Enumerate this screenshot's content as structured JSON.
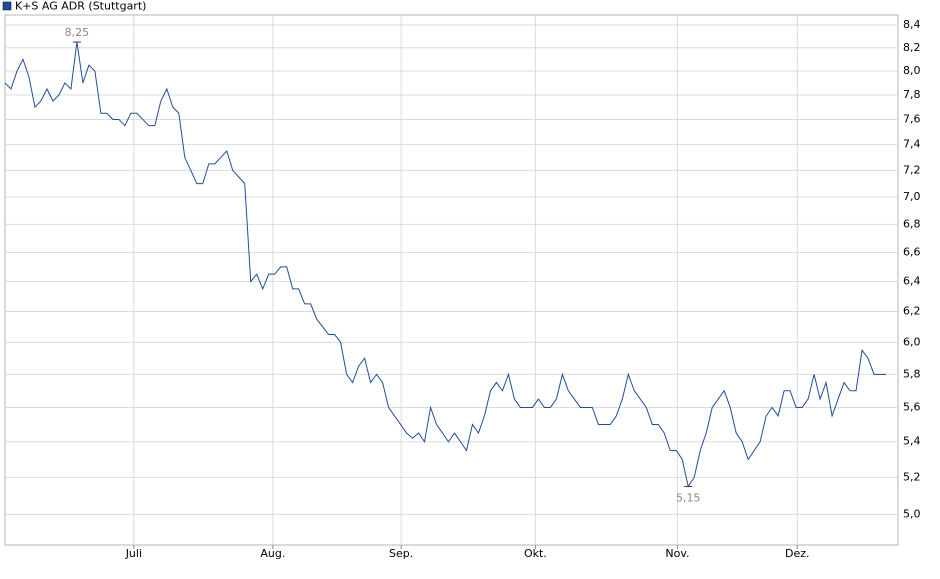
{
  "chart_data": {
    "type": "line",
    "log_scale": true,
    "grid": true,
    "series": [
      {
        "name": "K+S AG ADR (Stuttgart)",
        "color": "#1f4e9c",
        "values": [
          7.9,
          7.85,
          8.0,
          8.1,
          7.95,
          7.7,
          7.75,
          7.85,
          7.75,
          7.8,
          7.9,
          7.85,
          8.25,
          7.9,
          8.05,
          8.0,
          7.65,
          7.65,
          7.6,
          7.6,
          7.55,
          7.65,
          7.65,
          7.6,
          7.55,
          7.55,
          7.75,
          7.85,
          7.7,
          7.65,
          7.3,
          7.2,
          7.1,
          7.1,
          7.25,
          7.25,
          7.3,
          7.35,
          7.2,
          7.15,
          7.1,
          6.4,
          6.45,
          6.35,
          6.45,
          6.45,
          6.5,
          6.5,
          6.35,
          6.35,
          6.25,
          6.25,
          6.15,
          6.1,
          6.05,
          6.05,
          6.0,
          5.8,
          5.75,
          5.85,
          5.9,
          5.75,
          5.8,
          5.75,
          5.6,
          5.55,
          5.5,
          5.45,
          5.42,
          5.45,
          5.4,
          5.6,
          5.5,
          5.45,
          5.4,
          5.45,
          5.4,
          5.35,
          5.5,
          5.45,
          5.55,
          5.7,
          5.75,
          5.7,
          5.8,
          5.65,
          5.6,
          5.6,
          5.6,
          5.65,
          5.6,
          5.6,
          5.65,
          5.8,
          5.7,
          5.65,
          5.6,
          5.6,
          5.6,
          5.5,
          5.5,
          5.5,
          5.55,
          5.65,
          5.8,
          5.7,
          5.65,
          5.6,
          5.5,
          5.5,
          5.45,
          5.35,
          5.35,
          5.3,
          5.15,
          5.2,
          5.35,
          5.45,
          5.6,
          5.65,
          5.7,
          5.6,
          5.45,
          5.4,
          5.3,
          5.35,
          5.4,
          5.55,
          5.6,
          5.55,
          5.7,
          5.7,
          5.6,
          5.6,
          5.65,
          5.8,
          5.65,
          5.75,
          5.55,
          5.65,
          5.75,
          5.7,
          5.7,
          5.95,
          5.9,
          5.8,
          5.8,
          5.8
        ]
      }
    ],
    "annotations": [
      {
        "value": 8.25,
        "label": "8,25"
      },
      {
        "value": 5.15,
        "label": "5,15"
      }
    ],
    "xlim": [
      0,
      149
    ],
    "xticks": [
      {
        "value": 21.5,
        "label": "Juli"
      },
      {
        "value": 44.7,
        "label": "Aug."
      },
      {
        "value": 66.1,
        "label": "Sep."
      },
      {
        "value": 88.5,
        "label": "Okt."
      },
      {
        "value": 112.2,
        "label": "Nov."
      },
      {
        "value": 132.2,
        "label": "Dez."
      }
    ],
    "ylim": [
      4.84,
      8.49
    ],
    "yticks": [
      {
        "value": 5.0,
        "label": "5,0"
      },
      {
        "value": 5.2,
        "label": "5,2"
      },
      {
        "value": 5.4,
        "label": "5,4"
      },
      {
        "value": 5.6,
        "label": "5,6"
      },
      {
        "value": 5.8,
        "label": "5,8"
      },
      {
        "value": 6.0,
        "label": "6,0"
      },
      {
        "value": 6.2,
        "label": "6,2"
      },
      {
        "value": 6.4,
        "label": "6,4"
      },
      {
        "value": 6.6,
        "label": "6,6"
      },
      {
        "value": 6.8,
        "label": "6,8"
      },
      {
        "value": 7.0,
        "label": "7,0"
      },
      {
        "value": 7.2,
        "label": "7,2"
      },
      {
        "value": 7.4,
        "label": "7,4"
      },
      {
        "value": 7.6,
        "label": "7,6"
      },
      {
        "value": 7.8,
        "label": "7,8"
      },
      {
        "value": 8.0,
        "label": "8,0"
      },
      {
        "value": 8.2,
        "label": "8,2"
      },
      {
        "value": 8.4,
        "label": "8,4"
      }
    ]
  }
}
